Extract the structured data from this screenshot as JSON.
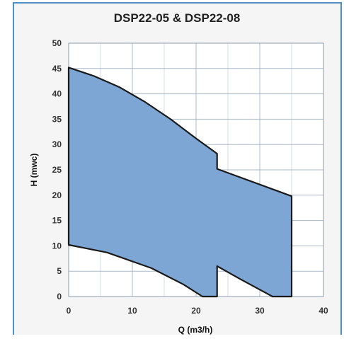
{
  "chart_data": {
    "type": "area",
    "title": "DSP22-05 & DSP22-08",
    "xlabel": "Q (m3/h)",
    "ylabel": "H (mwc)",
    "xlim": [
      0,
      40
    ],
    "ylim": [
      0,
      50
    ],
    "x_ticks": [
      0,
      10,
      20,
      30,
      40
    ],
    "y_ticks": [
      0,
      5,
      10,
      15,
      20,
      25,
      30,
      35,
      40,
      45,
      50
    ],
    "grid": true,
    "fill_color": "#7ea6d4",
    "edge_color": "#1a1a1a",
    "operating_range": [
      [
        0,
        45.2
      ],
      [
        4,
        43.5
      ],
      [
        8,
        41.3
      ],
      [
        12,
        38.4
      ],
      [
        16,
        35.0
      ],
      [
        20,
        31.2
      ],
      [
        23.3,
        28.2
      ],
      [
        23.3,
        25.2
      ],
      [
        35,
        19.8
      ],
      [
        35,
        0
      ],
      [
        32,
        0
      ],
      [
        27,
        3.4
      ],
      [
        23.3,
        6.0
      ],
      [
        23.3,
        0
      ],
      [
        21,
        0
      ],
      [
        18,
        2.4
      ],
      [
        13,
        5.6
      ],
      [
        6,
        8.7
      ],
      [
        0,
        10.2
      ]
    ]
  }
}
